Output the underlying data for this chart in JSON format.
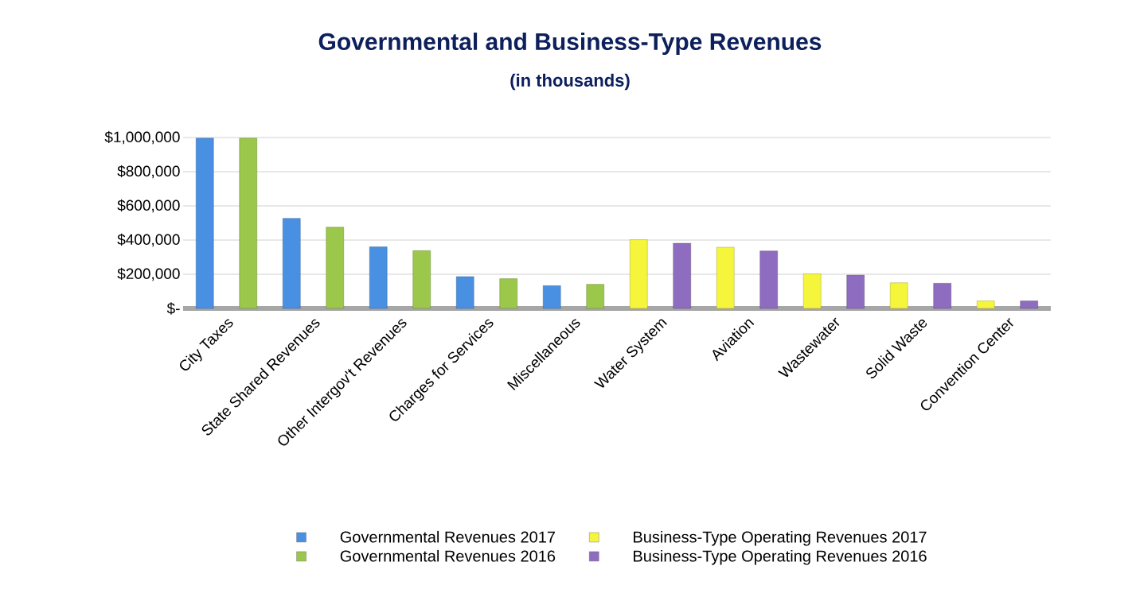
{
  "chart_data": {
    "type": "bar",
    "title": "Governmental and Business-Type Revenues",
    "subtitle": "(in thousands)",
    "categories": [
      "City Taxes",
      "State Shared Revenues",
      "Other Intergov't Revenues",
      "Charges for Services",
      "Miscellaneous",
      "Water System",
      "Aviation",
      "Wastewater",
      "Solid Waste",
      "Convention Center"
    ],
    "series": [
      {
        "name": "Governmental Revenues 2017",
        "color": "#4a90e2",
        "values": [
          996000,
          527000,
          360000,
          186000,
          133000,
          null,
          null,
          null,
          null,
          null
        ]
      },
      {
        "name": "Governmental Revenues 2016",
        "color": "#9bc74a",
        "values": [
          996000,
          475000,
          338000,
          174000,
          141000,
          null,
          null,
          null,
          null,
          null
        ]
      },
      {
        "name": "Business-Type Operating Revenues 2017",
        "color": "#f5f53c",
        "values": [
          null,
          null,
          null,
          null,
          null,
          402000,
          358000,
          202000,
          150000,
          44000
        ]
      },
      {
        "name": "Business-Type Operating Revenues 2016",
        "color": "#8e6cc0",
        "values": [
          null,
          null,
          null,
          null,
          null,
          381000,
          336000,
          195000,
          147000,
          44000
        ]
      }
    ],
    "ylim": [
      0,
      1000000
    ],
    "yticks": [
      {
        "value": 0,
        "label": "$-"
      },
      {
        "value": 200000,
        "label": "$200,000"
      },
      {
        "value": 400000,
        "label": "$400,000"
      },
      {
        "value": 600000,
        "label": "$600,000"
      },
      {
        "value": 800000,
        "label": "$800,000"
      },
      {
        "value": 1000000,
        "label": "$1,000,000"
      }
    ],
    "grid": "y",
    "legend": "bottom"
  }
}
